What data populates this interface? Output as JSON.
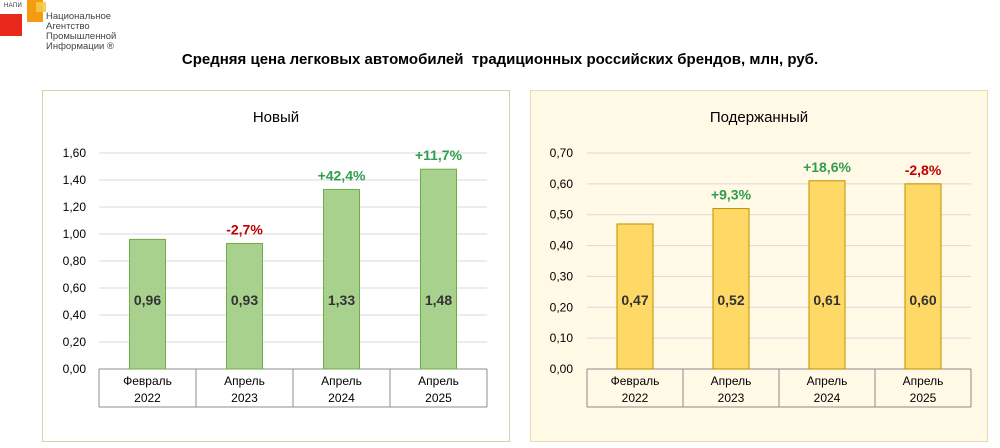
{
  "header": {
    "logo_abbr": "НАПИ",
    "logo_org": "Национальное\nАгентство\nПромышленной\nИнформации ®",
    "title": "Средняя цена легковых автомобилей  традиционных российских брендов, млн, руб."
  },
  "colors": {
    "new_bar": "#a9d18e",
    "new_bar_border": "#70ad47",
    "used_bar": "#ffd966",
    "used_bar_border": "#bf9000",
    "positive": "#2e9e4f",
    "negative": "#c00000",
    "gridline": "#d9d9d9"
  },
  "chart_data": [
    {
      "type": "bar",
      "title": "Новый",
      "categories": [
        [
          "Февраль",
          "2022"
        ],
        [
          "Апрель",
          "2023"
        ],
        [
          "Апрель",
          "2024"
        ],
        [
          "Апрель",
          "2025"
        ]
      ],
      "values": [
        0.96,
        0.93,
        1.33,
        1.48
      ],
      "value_labels": [
        "0,96",
        "0,93",
        "1,33",
        "1,48"
      ],
      "changes": [
        "",
        "-2,7%",
        "+42,4%",
        "+11,7%"
      ],
      "change_signs": [
        "",
        "negative",
        "positive",
        "positive"
      ],
      "ylim": [
        0,
        1.6
      ],
      "yticks": [
        "0,00",
        "0,20",
        "0,40",
        "0,60",
        "0,80",
        "1,00",
        "1,20",
        "1,40",
        "1,60"
      ],
      "grid": true
    },
    {
      "type": "bar",
      "title": "Подержанный",
      "categories": [
        [
          "Февраль",
          "2022"
        ],
        [
          "Апрель",
          "2023"
        ],
        [
          "Апрель",
          "2024"
        ],
        [
          "Апрель",
          "2025"
        ]
      ],
      "values": [
        0.47,
        0.52,
        0.61,
        0.6
      ],
      "value_labels": [
        "0,47",
        "0,52",
        "0,61",
        "0,60"
      ],
      "changes": [
        "",
        "+9,3%",
        "+18,6%",
        "-2,8%"
      ],
      "change_signs": [
        "",
        "positive",
        "positive",
        "negative"
      ],
      "ylim": [
        0,
        0.7
      ],
      "yticks": [
        "0,00",
        "0,10",
        "0,20",
        "0,30",
        "0,40",
        "0,50",
        "0,60",
        "0,70"
      ],
      "grid": true
    }
  ]
}
